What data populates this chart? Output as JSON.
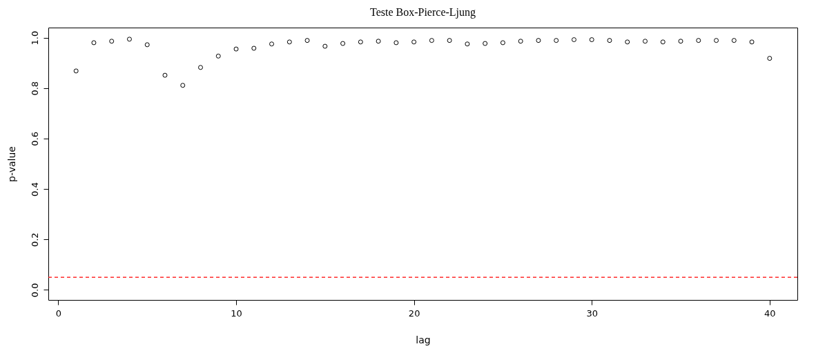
{
  "chart_data": {
    "type": "scatter",
    "title": "Teste Box-Pierce-Ljung",
    "xlabel": "lag",
    "ylabel": "p-value",
    "x": [
      1,
      2,
      3,
      4,
      5,
      6,
      7,
      8,
      9,
      10,
      11,
      12,
      13,
      14,
      15,
      16,
      17,
      18,
      19,
      20,
      21,
      22,
      23,
      24,
      25,
      26,
      27,
      28,
      29,
      30,
      31,
      32,
      33,
      34,
      35,
      36,
      37,
      38,
      39,
      40
    ],
    "series": [
      {
        "color": "#000000",
        "values": [
          0.868,
          0.98,
          0.986,
          0.994,
          0.972,
          0.851,
          0.811,
          0.882,
          0.927,
          0.955,
          0.958,
          0.975,
          0.983,
          0.989,
          0.966,
          0.977,
          0.983,
          0.986,
          0.98,
          0.983,
          0.989,
          0.989,
          0.975,
          0.977,
          0.98,
          0.986,
          0.989,
          0.989,
          0.992,
          0.992,
          0.989,
          0.983,
          0.986,
          0.983,
          0.986,
          0.989,
          0.989,
          0.989,
          0.983,
          0.918
        ]
      }
    ],
    "xlim": [
      -0.56,
      41.56
    ],
    "ylim": [
      -0.04,
      1.04
    ],
    "xticks": [
      0,
      10,
      20,
      30,
      40
    ],
    "yticks": [
      {
        "value": 0,
        "label": "0.0"
      },
      0.2,
      0.4,
      0.6,
      0.8,
      {
        "value": 1,
        "label": "1.0"
      }
    ],
    "ref_lines": [
      {
        "axis": "y",
        "value": 0.05,
        "color": "#ff0000",
        "line_style": "dashed"
      }
    ],
    "marker": "circle",
    "grid": false,
    "legend": false
  }
}
